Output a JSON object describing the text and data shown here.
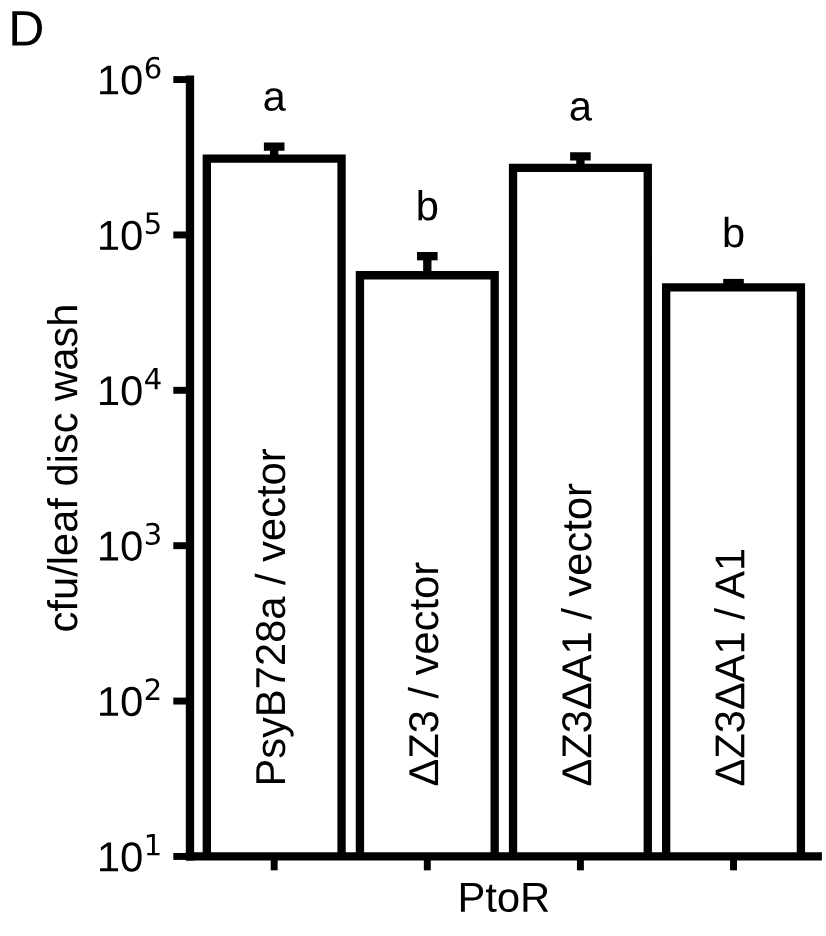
{
  "chart_data": {
    "type": "bar",
    "categories": [
      "PsyB728a / vector",
      "ΔZ3 / vector",
      "ΔZ3ΔA1 / vector",
      "ΔZ3ΔA1 / A1"
    ],
    "values": [
      310000,
      55000,
      270000,
      46000
    ],
    "errors": [
      [
        310000,
        370000
      ],
      [
        55000,
        73000
      ],
      [
        270000,
        320000
      ],
      [
        46000,
        49000
      ]
    ],
    "color": "#ffffff",
    "xlabel": "PtoR",
    "ylabel": "cfu/leaf disc wash",
    "log": true,
    "ylim": [
      10,
      1000000
    ],
    "yticks": [
      {
        "value": 10,
        "label": "10$^{1}$"
      },
      {
        "value": 100,
        "label": "10$^{2}$"
      },
      {
        "value": 1000,
        "label": "10$^{3}$"
      },
      {
        "value": 10000,
        "label": "10$^{4}$"
      },
      {
        "value": 100000,
        "label": "10$^{5}$"
      },
      {
        "value": 1000000,
        "label": "10$^{6}$"
      }
    ],
    "tick_labels": "y",
    "grid": false,
    "annotations": [
      "D",
      "a",
      "b",
      "a",
      "b"
    ]
  }
}
